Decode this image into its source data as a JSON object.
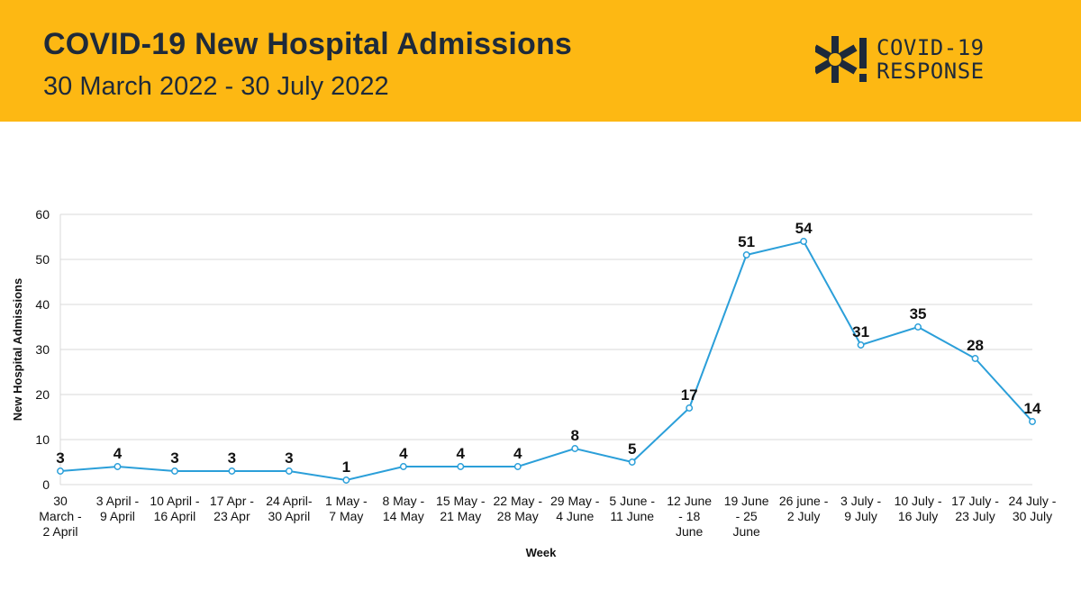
{
  "header": {
    "title": "COVID-19 New Hospital Admissions",
    "subtitle": "30 March 2022 - 30 July 2022",
    "logo_line1": "COVID-19",
    "logo_line2": "RESPONSE"
  },
  "colors": {
    "banner": "#FDB813",
    "text": "#1e2a3a",
    "line": "#2B9FD9",
    "grid": "#d9d9d9"
  },
  "chart_data": {
    "type": "line",
    "title": "",
    "xlabel": "Week",
    "ylabel": "New Hospital Admissions",
    "ylim": [
      0,
      60
    ],
    "yticks": [
      0,
      10,
      20,
      30,
      40,
      50,
      60
    ],
    "grid": true,
    "categories": [
      [
        "30",
        "March -",
        "2 April"
      ],
      [
        "3 April -",
        "9 April"
      ],
      [
        "10 April -",
        "16 April"
      ],
      [
        "17 Apr -",
        "23 Apr"
      ],
      [
        "24 April-",
        "30 April"
      ],
      [
        "1 May -",
        "7 May"
      ],
      [
        "8 May -",
        "14 May"
      ],
      [
        "15 May -",
        "21 May"
      ],
      [
        "22 May -",
        "28 May"
      ],
      [
        "29 May -",
        "4 June"
      ],
      [
        "5 June -",
        "11 June"
      ],
      [
        "12 June",
        "- 18",
        "June"
      ],
      [
        "19 June",
        "- 25",
        "June"
      ],
      [
        "26 june -",
        "2 July"
      ],
      [
        "3 July -",
        "9 July"
      ],
      [
        "10 July -",
        "16 July"
      ],
      [
        "17 July -",
        "23 July"
      ],
      [
        "24 July -",
        "30 July"
      ]
    ],
    "series": [
      {
        "name": "New Hospital Admissions",
        "values": [
          3,
          4,
          3,
          3,
          3,
          1,
          4,
          4,
          4,
          8,
          5,
          17,
          51,
          54,
          31,
          35,
          28,
          14
        ]
      }
    ]
  }
}
